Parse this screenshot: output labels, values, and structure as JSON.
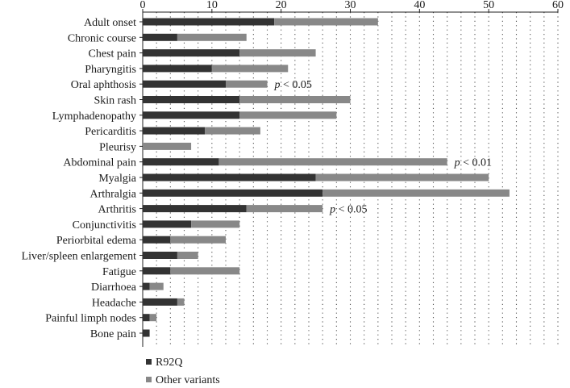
{
  "chart_data": {
    "type": "bar",
    "orientation": "horizontal",
    "stacked": true,
    "title": "",
    "xlabel": "",
    "ylabel": "",
    "xlim": [
      0,
      60
    ],
    "xticks": [
      0,
      10,
      20,
      30,
      40,
      50,
      60
    ],
    "grid": "vertical-dotted",
    "legend_position": "bottom-left",
    "categories": [
      "Adult onset",
      "Chronic course",
      "Chest pain",
      "Pharyngitis",
      "Oral aphthosis",
      "Skin rash",
      "Lymphadenopathy",
      "Pericarditis",
      "Pleurisy",
      "Abdominal pain",
      "Myalgia",
      "Arthralgia",
      "Arthritis",
      "Conjunctivitis",
      "Periorbital edema",
      "Liver/spleen enlargement",
      "Fatigue",
      "Diarrhoea",
      "Headache",
      "Painful limph nodes",
      "Bone pain"
    ],
    "series": [
      {
        "name": "R92Q",
        "color": "#333333",
        "values": [
          19,
          5,
          14,
          10,
          12,
          14,
          14,
          9,
          0,
          11,
          25,
          26,
          15,
          7,
          4,
          5,
          4,
          1,
          5,
          1,
          1
        ]
      },
      {
        "name": "Other variants",
        "color": "#888888",
        "values": [
          15,
          10,
          11,
          11,
          6,
          16,
          14,
          8,
          7,
          33,
          25,
          27,
          11,
          7,
          8,
          3,
          10,
          2,
          1,
          1,
          0
        ]
      }
    ],
    "annotations": [
      {
        "category": "Oral aphthosis",
        "text": "p < 0.05"
      },
      {
        "category": "Abdominal pain",
        "text": "p < 0.01"
      },
      {
        "category": "Arthritis",
        "text": "p < 0.05"
      }
    ]
  }
}
